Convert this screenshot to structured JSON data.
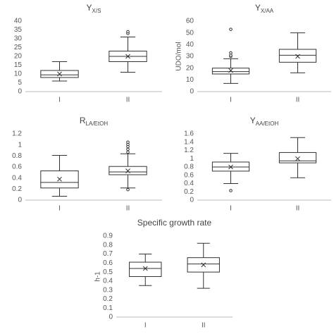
{
  "chart_data": [
    {
      "type": "box",
      "title": "Y",
      "title_sub": "X/S",
      "categories": [
        "I",
        "II"
      ],
      "color": "#333333",
      "ylim": [
        0,
        40
      ],
      "yticks": [
        0,
        5,
        10,
        15,
        20,
        25,
        30,
        35,
        40
      ],
      "boxes": [
        {
          "whisker_low": 6,
          "q1": 8,
          "median": 9.5,
          "q3": 12,
          "whisker_high": 17,
          "mean": 10,
          "outliers": []
        },
        {
          "whisker_low": 11,
          "q1": 17,
          "median": 20,
          "q3": 23,
          "whisker_high": 31,
          "mean": 20,
          "outliers": [
            33,
            34
          ]
        }
      ]
    },
    {
      "type": "box",
      "title": "Y",
      "title_sub": "X/AA",
      "ylabel": "UDO/mol",
      "categories": [
        "I",
        "II"
      ],
      "color": "#333333",
      "ylim": [
        0,
        60
      ],
      "yticks": [
        0,
        10,
        20,
        30,
        40,
        50,
        60
      ],
      "boxes": [
        {
          "whisker_low": 7,
          "q1": 15,
          "median": 17,
          "q3": 20,
          "whisker_high": 28,
          "mean": 18,
          "outliers": [
            30,
            31,
            33,
            53
          ]
        },
        {
          "whisker_low": 16,
          "q1": 25,
          "median": 31,
          "q3": 36,
          "whisker_high": 50,
          "mean": 30,
          "outliers": []
        }
      ]
    },
    {
      "type": "box",
      "title": "R",
      "title_sub": "LA/EtOH",
      "categories": [
        "I",
        "II"
      ],
      "color": "#333333",
      "ylim": [
        0,
        1.2
      ],
      "yticks": [
        0,
        0.2,
        0.4,
        0.6,
        0.8,
        1,
        1.2
      ],
      "boxes": [
        {
          "whisker_low": 0.07,
          "q1": 0.22,
          "median": 0.32,
          "q3": 0.53,
          "whisker_high": 0.81,
          "mean": 0.38,
          "outliers": []
        },
        {
          "whisker_low": 0.22,
          "q1": 0.46,
          "median": 0.51,
          "q3": 0.61,
          "whisker_high": 0.84,
          "mean": 0.53,
          "outliers": [
            0.19,
            0.87,
            0.92,
            0.97,
            1.01,
            1.05
          ]
        }
      ]
    },
    {
      "type": "box",
      "title": "Y",
      "title_sub": "AA/EtOH",
      "categories": [
        "I",
        "II"
      ],
      "color": "#333333",
      "ylim": [
        0,
        1.6
      ],
      "yticks": [
        0,
        0.2,
        0.4,
        0.6,
        0.8,
        1,
        1.2,
        1.4,
        1.6
      ],
      "boxes": [
        {
          "whisker_low": 0.4,
          "q1": 0.7,
          "median": 0.8,
          "q3": 0.92,
          "whisker_high": 1.13,
          "mean": 0.8,
          "outliers": [
            0.23
          ]
        },
        {
          "whisker_low": 0.54,
          "q1": 0.9,
          "median": 0.95,
          "q3": 1.15,
          "whisker_high": 1.51,
          "mean": 1.0,
          "outliers": []
        }
      ]
    },
    {
      "type": "box",
      "title": "Specific growth rate",
      "ylabel": "h-1",
      "categories": [
        "I",
        "II"
      ],
      "color": "#333333",
      "ylim": [
        0,
        0.9
      ],
      "yticks": [
        0,
        0.1,
        0.2,
        0.3,
        0.4,
        0.5,
        0.6,
        0.7,
        0.8,
        0.9
      ],
      "boxes": [
        {
          "whisker_low": 0.35,
          "q1": 0.45,
          "median": 0.54,
          "q3": 0.61,
          "whisker_high": 0.7,
          "mean": 0.54,
          "outliers": []
        },
        {
          "whisker_low": 0.32,
          "q1": 0.5,
          "median": 0.59,
          "q3": 0.66,
          "whisker_high": 0.82,
          "mean": 0.58,
          "outliers": []
        }
      ]
    }
  ]
}
